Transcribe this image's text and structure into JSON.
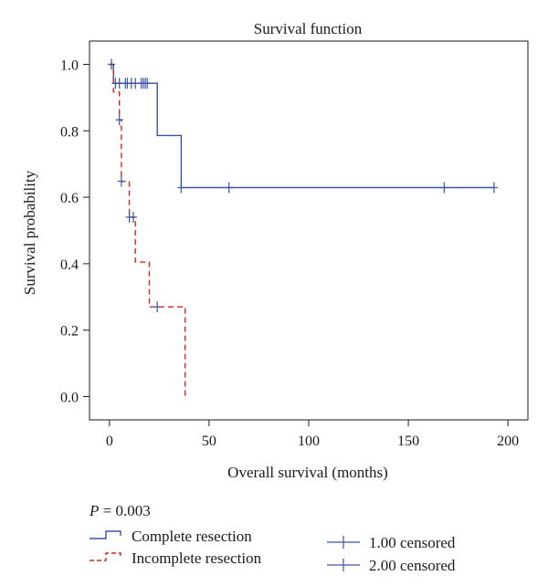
{
  "chart_data": {
    "type": "line",
    "subtype": "kaplan-meier",
    "title": "Survival function",
    "xlabel": "Overall survival (months)",
    "ylabel": "Survival probability",
    "xlim": [
      -10,
      210
    ],
    "ylim": [
      -0.07,
      1.07
    ],
    "xticks": [
      0,
      50,
      100,
      150,
      200
    ],
    "xtick_labels": [
      "0",
      "50",
      "100",
      "150",
      "200"
    ],
    "yticks": [
      0.0,
      0.2,
      0.4,
      0.6,
      0.8,
      1.0
    ],
    "ytick_labels": [
      "0.0",
      "0.2",
      "0.4",
      "0.6",
      "0.8",
      "1.0"
    ],
    "grid": false,
    "legend_position": "bottom-left",
    "annotation": {
      "label": "P",
      "text": " = 0.003"
    },
    "series": [
      {
        "name": "Complete resection",
        "color": "#3a54a4",
        "dash": "solid",
        "steps": [
          [
            0,
            1.0
          ],
          [
            2,
            1.0
          ],
          [
            2,
            0.943
          ],
          [
            24,
            0.943
          ],
          [
            24,
            0.786
          ],
          [
            36,
            0.786
          ],
          [
            36,
            0.629
          ],
          [
            193,
            0.629
          ]
        ],
        "censored": [
          [
            1,
            1.0
          ],
          [
            3,
            0.943
          ],
          [
            5,
            0.943
          ],
          [
            8,
            0.943
          ],
          [
            9,
            0.943
          ],
          [
            11,
            0.943
          ],
          [
            13,
            0.943
          ],
          [
            16,
            0.943
          ],
          [
            17,
            0.943
          ],
          [
            18,
            0.943
          ],
          [
            19,
            0.943
          ],
          [
            36,
            0.629
          ],
          [
            60,
            0.629
          ],
          [
            168,
            0.629
          ],
          [
            193,
            0.629
          ]
        ]
      },
      {
        "name": "Incomplete resection",
        "color": "#d9261c",
        "dash": "dashed",
        "steps": [
          [
            0,
            1.0
          ],
          [
            2,
            1.0
          ],
          [
            2,
            0.917
          ],
          [
            5,
            0.917
          ],
          [
            5,
            0.833
          ],
          [
            6,
            0.833
          ],
          [
            6,
            0.648
          ],
          [
            10,
            0.648
          ],
          [
            10,
            0.54
          ],
          [
            13,
            0.54
          ],
          [
            13,
            0.405
          ],
          [
            20,
            0.405
          ],
          [
            20,
            0.27
          ],
          [
            38,
            0.27
          ],
          [
            38,
            0.0
          ]
        ],
        "censored": [
          [
            5,
            0.833
          ],
          [
            6,
            0.648
          ],
          [
            10,
            0.54
          ],
          [
            12,
            0.54
          ],
          [
            24,
            0.27
          ]
        ]
      }
    ],
    "censor_legend": [
      {
        "label": "1.00 censored",
        "series": 0
      },
      {
        "label": "2.00 censored",
        "series": 1
      }
    ]
  }
}
